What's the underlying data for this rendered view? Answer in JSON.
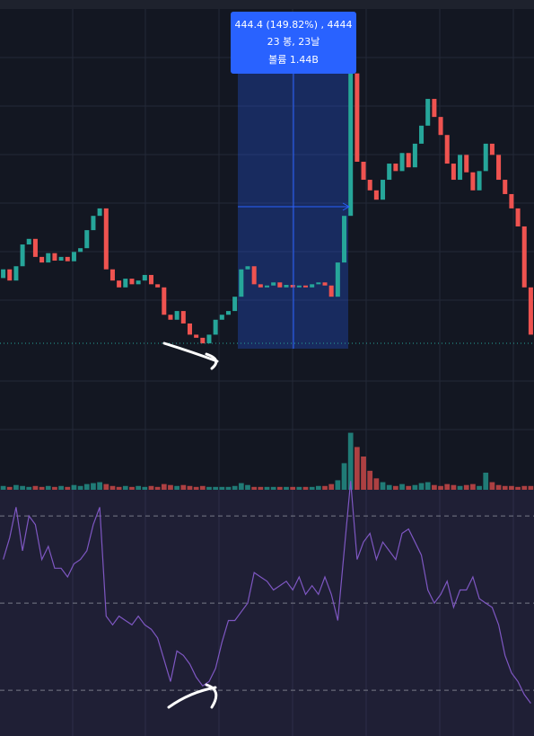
{
  "chart_data": {
    "type": "candlestick",
    "up_color": "#26a69a",
    "down_color": "#ef5350",
    "ylim": [
      178,
      857
    ],
    "open": [
      410,
      424,
      406,
      429,
      464,
      473,
      444,
      435,
      450,
      438,
      444,
      437,
      452,
      458,
      487,
      510,
      522,
      424,
      406,
      395,
      409,
      400,
      406,
      415,
      400,
      395,
      351,
      343,
      357,
      337,
      319,
      314,
      305,
      319,
      343,
      351,
      357,
      380,
      424,
      429,
      400,
      395,
      398,
      403,
      395,
      399,
      395,
      398,
      395,
      400,
      403,
      398,
      380,
      435,
      510,
      739,
      597,
      568,
      551,
      536,
      568,
      594,
      582,
      611,
      588,
      626,
      655,
      698,
      669,
      640,
      594,
      568,
      608,
      580,
      551,
      582,
      626,
      608,
      568,
      545,
      522,
      493,
      395
    ],
    "close": [
      424,
      406,
      429,
      464,
      473,
      444,
      435,
      450,
      438,
      444,
      437,
      452,
      458,
      487,
      510,
      522,
      424,
      406,
      395,
      409,
      400,
      406,
      415,
      400,
      395,
      351,
      343,
      357,
      337,
      319,
      314,
      305,
      319,
      343,
      351,
      357,
      380,
      424,
      429,
      400,
      395,
      398,
      403,
      395,
      399,
      395,
      398,
      395,
      400,
      403,
      398,
      380,
      435,
      510,
      739,
      597,
      568,
      551,
      536,
      568,
      594,
      582,
      611,
      588,
      626,
      655,
      698,
      669,
      640,
      594,
      568,
      608,
      580,
      551,
      582,
      626,
      608,
      568,
      545,
      522,
      493,
      395,
      319
    ],
    "volume": {
      "ylim": [
        0,
        70
      ],
      "values": [
        4,
        3,
        5,
        4,
        3,
        4,
        3,
        4,
        3,
        4,
        3,
        5,
        4,
        6,
        7,
        8,
        6,
        4,
        3,
        4,
        3,
        4,
        3,
        4,
        3,
        6,
        5,
        4,
        5,
        4,
        3,
        4,
        3,
        3,
        3,
        3,
        4,
        7,
        5,
        3,
        3,
        3,
        3,
        3,
        3,
        3,
        3,
        3,
        3,
        4,
        4,
        6,
        10,
        28,
        60,
        45,
        35,
        20,
        12,
        8,
        5,
        4,
        6,
        4,
        5,
        7,
        8,
        5,
        4,
        6,
        5,
        4,
        5,
        6,
        4,
        18,
        8,
        5,
        4,
        4,
        3,
        4,
        4
      ]
    },
    "oscillator": {
      "color": "#7e57c2",
      "ylim": [
        19.5,
        76
      ],
      "levels": [
        70,
        50,
        30
      ],
      "values": [
        60,
        65,
        72,
        62,
        70,
        68,
        60,
        63,
        58,
        58,
        56,
        59,
        60,
        62,
        68,
        72,
        47,
        45,
        47,
        46,
        45,
        47,
        45,
        44,
        42,
        37,
        32,
        39,
        38,
        36,
        33,
        31,
        32,
        35,
        41,
        46,
        46,
        48,
        50,
        57,
        56,
        55,
        53,
        54,
        55,
        53,
        56,
        52,
        54,
        52,
        56,
        52,
        46,
        62,
        78,
        60,
        64,
        66,
        60,
        64,
        62,
        60,
        66,
        67,
        64,
        61,
        53,
        50,
        52,
        55,
        49,
        53,
        53,
        56,
        51,
        50,
        49,
        45,
        38,
        34,
        32,
        29,
        27
      ]
    },
    "annotations": [
      "444.4 (149.82%) , 4444",
      "23 봉, 23날",
      "볼륨 1.44B"
    ]
  }
}
